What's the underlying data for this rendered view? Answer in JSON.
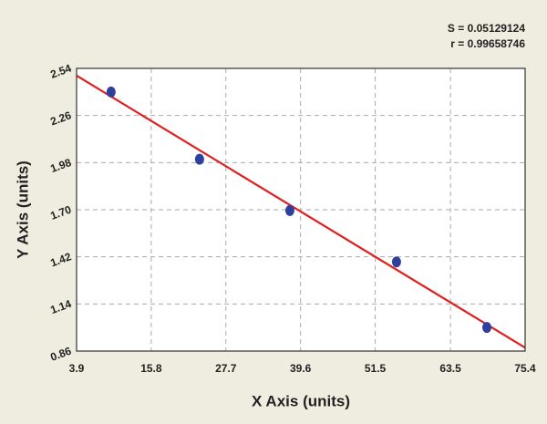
{
  "chart_data": {
    "type": "scatter",
    "xlabel": "X Axis (units)",
    "ylabel": "Y Axis (units)",
    "annotations": [
      "S = 0.05129124",
      "r = 0.99658746"
    ],
    "x": [
      9.4,
      23.5,
      37.9,
      54.9,
      69.3
    ],
    "values": [
      2.4,
      2.0,
      1.695,
      1.39,
      1.0
    ],
    "color": "#2e3f9e",
    "fit": {
      "x": [
        3.9,
        75.4
      ],
      "y": [
        2.497,
        0.88
      ],
      "color": "#e02020"
    },
    "xlim": [
      3.9,
      75.4
    ],
    "ylim": [
      0.86,
      2.54
    ],
    "xticks": [
      3.9,
      15.8,
      27.7,
      39.6,
      51.5,
      63.5,
      75.4
    ],
    "yticks": [
      0.86,
      1.14,
      1.42,
      {
        "value": 1.7,
        "label": "1.70"
      },
      1.98,
      2.26,
      2.54
    ],
    "grid": true
  }
}
